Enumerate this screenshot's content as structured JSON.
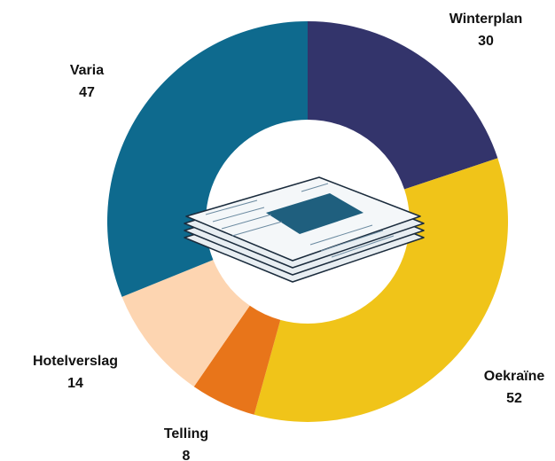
{
  "chart_data": {
    "type": "donut",
    "categories": [
      "Winterplan",
      "Oekraïne",
      "Telling",
      "Hotelverslag",
      "Varia"
    ],
    "values": [
      30,
      52,
      8,
      14,
      47
    ],
    "colors": [
      "#33346b",
      "#f0c419",
      "#e8751a",
      "#fdd5b1",
      "#0e6a8e"
    ]
  }
}
